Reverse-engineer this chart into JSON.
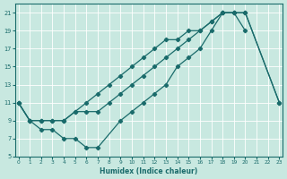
{
  "xlabel": "Humidex (Indice chaleur)",
  "bg_color": "#c8e8e0",
  "grid_color": "#ffffff",
  "line_color": "#1a6b6b",
  "xlim": [
    -0.3,
    23.3
  ],
  "ylim": [
    5,
    22
  ],
  "xticks": [
    0,
    1,
    2,
    3,
    4,
    5,
    6,
    7,
    8,
    9,
    10,
    11,
    12,
    13,
    14,
    15,
    16,
    17,
    18,
    19,
    20,
    21,
    22,
    23
  ],
  "yticks": [
    5,
    7,
    9,
    11,
    13,
    15,
    17,
    19,
    21
  ],
  "line1_x": [
    0,
    1,
    2,
    3,
    4,
    5,
    6,
    7,
    8,
    9,
    10,
    11,
    12,
    13,
    14,
    15,
    16,
    17,
    18,
    19,
    20,
    23
  ],
  "line1_y": [
    11,
    9,
    9,
    9,
    9,
    10,
    10,
    10,
    11,
    12,
    13,
    14,
    15,
    16,
    17,
    18,
    19,
    20,
    21,
    21,
    21,
    11
  ],
  "line2_x": [
    0,
    1,
    2,
    3,
    4,
    5,
    6,
    7,
    8,
    9,
    10,
    11,
    12,
    13,
    14,
    15,
    16,
    17,
    18,
    19,
    20
  ],
  "line2_y": [
    11,
    9,
    9,
    9,
    9,
    10,
    11,
    12,
    13,
    14,
    15,
    16,
    17,
    18,
    18,
    19,
    19,
    20,
    21,
    21,
    19
  ],
  "line3_x": [
    0,
    1,
    2,
    3,
    4,
    5,
    6,
    7,
    9,
    10,
    11,
    12,
    13,
    14,
    15,
    16,
    17,
    18,
    19,
    20,
    23
  ],
  "line3_y": [
    11,
    9,
    8,
    8,
    7,
    7,
    6,
    6,
    9,
    10,
    11,
    12,
    13,
    15,
    16,
    17,
    19,
    21,
    21,
    21,
    11
  ]
}
